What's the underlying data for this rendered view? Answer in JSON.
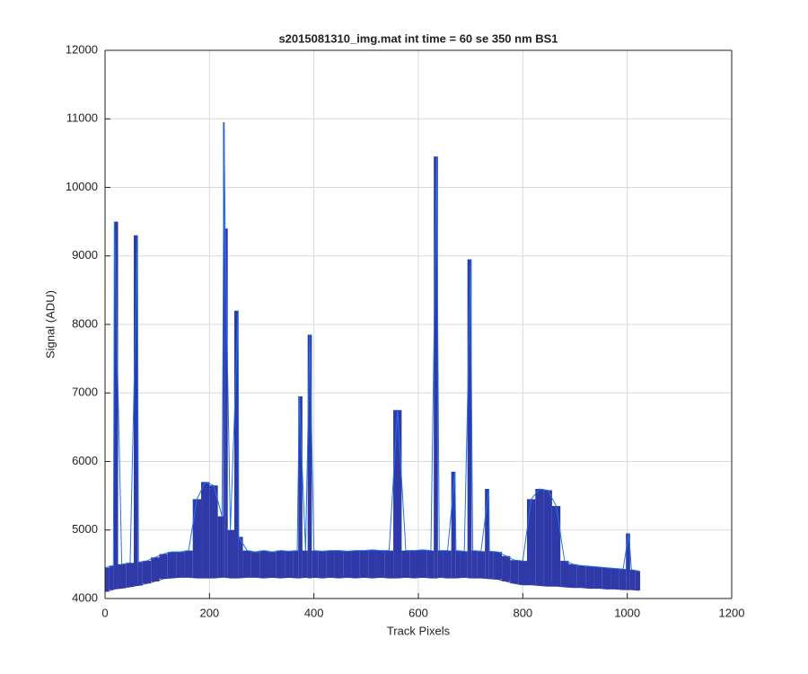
{
  "chart_data": {
    "type": "band",
    "title": "s2015081310_img.mat int time = 60 se  350 nm BS1",
    "x_label": "Track Pixels",
    "y_label": "Signal (ADU)",
    "x": [
      0,
      16,
      18,
      32,
      48,
      62,
      64,
      80,
      96,
      112,
      128,
      144,
      160,
      176,
      192,
      208,
      224,
      228,
      230,
      240,
      255,
      256,
      272,
      288,
      304,
      320,
      336,
      352,
      368,
      372,
      384,
      392,
      400,
      416,
      432,
      448,
      464,
      480,
      496,
      512,
      528,
      544,
      560,
      576,
      592,
      608,
      624,
      635,
      640,
      656,
      670,
      672,
      688,
      700,
      704,
      720,
      735,
      736,
      752,
      768,
      784,
      800,
      816,
      832,
      848,
      864,
      880,
      896,
      912,
      928,
      944,
      960,
      976,
      992,
      1003,
      1008,
      1023
    ],
    "series": [
      {
        "color": "#1f74e8",
        "values": [
          4450,
          4480,
          9500,
          4500,
          4520,
          9300,
          4530,
          4550,
          4600,
          4650,
          4680,
          4680,
          4700,
          5450,
          5700,
          5650,
          5200,
          10950,
          9400,
          5000,
          8200,
          4900,
          4700,
          4680,
          4700,
          4680,
          4700,
          4690,
          4700,
          6950,
          4700,
          7850,
          4700,
          4690,
          4700,
          4700,
          4690,
          4700,
          4700,
          4710,
          4700,
          4700,
          6750,
          4700,
          4700,
          4710,
          4700,
          10450,
          4700,
          4700,
          5850,
          4700,
          4690,
          8950,
          4700,
          4690,
          5600,
          4690,
          4680,
          4620,
          4560,
          4550,
          5450,
          5600,
          5580,
          5350,
          4550,
          4500,
          4480,
          4470,
          4460,
          4450,
          4440,
          4430,
          4950,
          4420,
          4400
        ]
      },
      {
        "color": "#2f3aa8",
        "values": [
          4100,
          4130,
          4140,
          4150,
          4170,
          4190,
          4190,
          4220,
          4250,
          4290,
          4300,
          4310,
          4310,
          4300,
          4300,
          4300,
          4310,
          4310,
          4310,
          4300,
          4300,
          4300,
          4310,
          4310,
          4300,
          4310,
          4300,
          4310,
          4300,
          4300,
          4310,
          4300,
          4310,
          4300,
          4310,
          4300,
          4310,
          4300,
          4310,
          4300,
          4310,
          4300,
          4300,
          4310,
          4300,
          4310,
          4300,
          4300,
          4310,
          4300,
          4300,
          4300,
          4310,
          4300,
          4300,
          4300,
          4290,
          4290,
          4280,
          4250,
          4220,
          4200,
          4200,
          4190,
          4180,
          4180,
          4170,
          4160,
          4160,
          4150,
          4150,
          4140,
          4140,
          4130,
          4130,
          4130,
          4120
        ]
      }
    ],
    "xlim": [
      0,
      1200
    ],
    "xticks": [
      0,
      200,
      400,
      600,
      800,
      1000,
      1200
    ],
    "ylim": [
      4000,
      12000
    ],
    "yticks": [
      4000,
      5000,
      6000,
      7000,
      8000,
      9000,
      10000,
      11000,
      12000
    ],
    "grid": true
  }
}
